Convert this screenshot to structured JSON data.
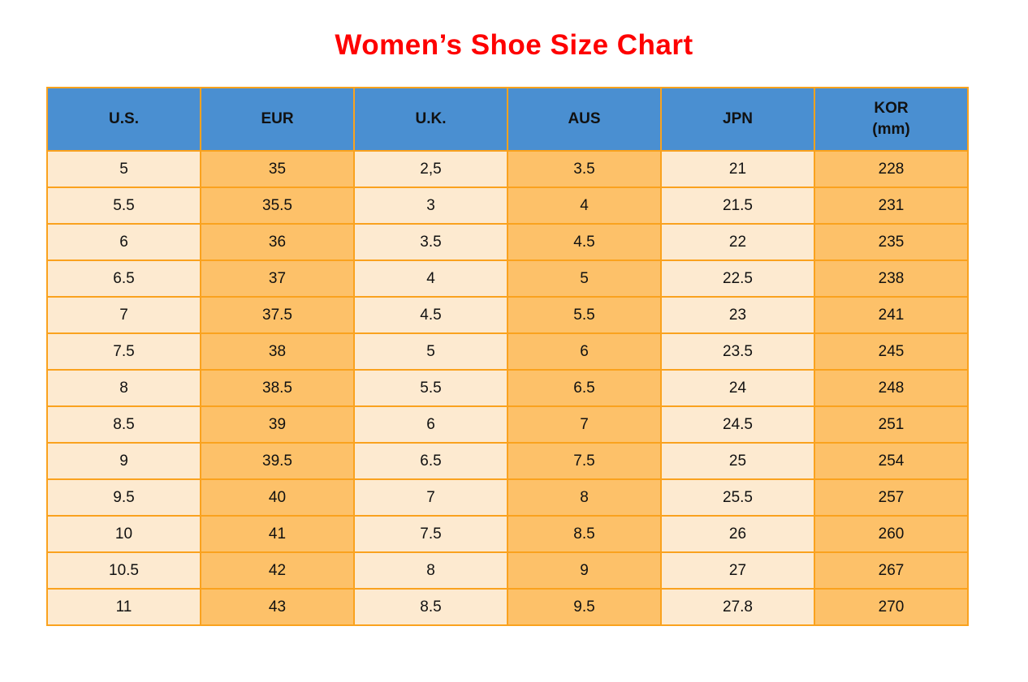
{
  "page": {
    "title": "Women’s Shoe Size Chart"
  },
  "colors": {
    "title_red": "#FE0000",
    "header_blue": "#4A8FD1",
    "grid_orange": "#FAA21E",
    "cell_light": "#FDEAD0",
    "cell_orange": "#FDC169",
    "text_black": "#111111",
    "page_background": "#FFFFFF"
  },
  "table": {
    "columns": [
      "U.S.",
      "EUR",
      "U.K.",
      "AUS",
      "JPN",
      "KOR\n(mm)"
    ],
    "rows": [
      [
        "5",
        "35",
        "2,5",
        "3.5",
        "21",
        "228"
      ],
      [
        "5.5",
        "35.5",
        "3",
        "4",
        "21.5",
        "231"
      ],
      [
        "6",
        "36",
        "3.5",
        "4.5",
        "22",
        "235"
      ],
      [
        "6.5",
        "37",
        "4",
        "5",
        "22.5",
        "238"
      ],
      [
        "7",
        "37.5",
        "4.5",
        "5.5",
        "23",
        "241"
      ],
      [
        "7.5",
        "38",
        "5",
        "6",
        "23.5",
        "245"
      ],
      [
        "8",
        "38.5",
        "5.5",
        "6.5",
        "24",
        "248"
      ],
      [
        "8.5",
        "39",
        "6",
        "7",
        "24.5",
        "251"
      ],
      [
        "9",
        "39.5",
        "6.5",
        "7.5",
        "25",
        "254"
      ],
      [
        "9.5",
        "40",
        "7",
        "8",
        "25.5",
        "257"
      ],
      [
        "10",
        "41",
        "7.5",
        "8.5",
        "26",
        "260"
      ],
      [
        "10.5",
        "42",
        "8",
        "9",
        "27",
        "267"
      ],
      [
        "11",
        "43",
        "8.5",
        "9.5",
        "27.8",
        "270"
      ]
    ]
  },
  "chart_data": {
    "type": "table",
    "title": "Women’s Shoe Size Chart",
    "columns": [
      "U.S.",
      "EUR",
      "U.K.",
      "AUS",
      "JPN",
      "KOR (mm)"
    ],
    "rows": [
      [
        "5",
        "35",
        "2,5",
        "3.5",
        "21",
        "228"
      ],
      [
        "5.5",
        "35.5",
        "3",
        "4",
        "21.5",
        "231"
      ],
      [
        "6",
        "36",
        "3.5",
        "4.5",
        "22",
        "235"
      ],
      [
        "6.5",
        "37",
        "4",
        "5",
        "22.5",
        "238"
      ],
      [
        "7",
        "37.5",
        "4.5",
        "5.5",
        "23",
        "241"
      ],
      [
        "7.5",
        "38",
        "5",
        "6",
        "23.5",
        "245"
      ],
      [
        "8",
        "38.5",
        "5.5",
        "6.5",
        "24",
        "248"
      ],
      [
        "8.5",
        "39",
        "6",
        "7",
        "24.5",
        "251"
      ],
      [
        "9",
        "39.5",
        "6.5",
        "7.5",
        "25",
        "254"
      ],
      [
        "9.5",
        "40",
        "7",
        "8",
        "25.5",
        "257"
      ],
      [
        "10",
        "41",
        "7.5",
        "8.5",
        "26",
        "260"
      ],
      [
        "10.5",
        "42",
        "8",
        "9",
        "27",
        "267"
      ],
      [
        "11",
        "43",
        "8.5",
        "9.5",
        "27.8",
        "270"
      ]
    ],
    "layout_hints": {
      "column_stripe_pattern": [
        "light",
        "orange",
        "light",
        "orange",
        "light",
        "orange"
      ],
      "header_background": "blue",
      "grid": "on"
    }
  }
}
